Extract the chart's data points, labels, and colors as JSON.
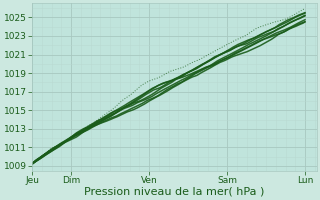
{
  "title": "",
  "xlabel": "Pression niveau de la mer( hPa )",
  "ylabel": "",
  "background_color": "#cce8e0",
  "plot_bg_color": "#c0e4dc",
  "grid_color_major": "#a8c8c0",
  "grid_color_minor": "#b8d8d0",
  "line_color": "#1a5c1a",
  "yticks": [
    1009,
    1011,
    1013,
    1015,
    1017,
    1019,
    1021,
    1023,
    1025
  ],
  "ymin": 1008.5,
  "ymax": 1026.5,
  "xtick_labels": [
    "Jeu",
    "Dim",
    "Ven",
    "Sam",
    "Lun"
  ],
  "xtick_positions": [
    0,
    24,
    72,
    120,
    168
  ],
  "total_hours": 175,
  "xlabel_fontsize": 8.0,
  "tick_fontsize": 6.5
}
